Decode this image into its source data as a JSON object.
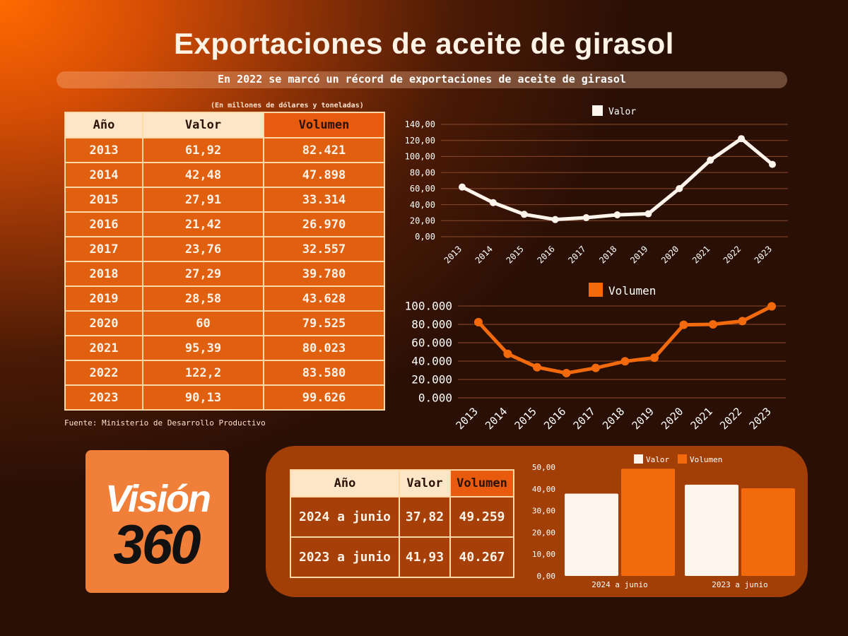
{
  "title": "Exportaciones de aceite de girasol",
  "subtitle": "En 2022 se marcó un récord de exportaciones de aceite de girasol",
  "units_note": "(En millones de dólares y toneladas)",
  "source": "Fuente: Ministerio de Desarrollo Productivo",
  "logo": {
    "top": "Visión",
    "bottom": "360"
  },
  "colors": {
    "valor": "#fff5ec",
    "volumen": "#f26a0c",
    "grid": "#8a4a2a"
  },
  "main_table": {
    "headers": [
      "Año",
      "Valor",
      "Volumen"
    ],
    "rows": [
      [
        "2013",
        "61,92",
        "82.421"
      ],
      [
        "2014",
        "42,48",
        "47.898"
      ],
      [
        "2015",
        "27,91",
        "33.314"
      ],
      [
        "2016",
        "21,42",
        "26.970"
      ],
      [
        "2017",
        "23,76",
        "32.557"
      ],
      [
        "2018",
        "27,29",
        "39.780"
      ],
      [
        "2019",
        "28,58",
        "43.628"
      ],
      [
        "2020",
        "60",
        "79.525"
      ],
      [
        "2021",
        "95,39",
        "80.023"
      ],
      [
        "2022",
        "122,2",
        "83.580"
      ],
      [
        "2023",
        "90,13",
        "99.626"
      ]
    ]
  },
  "mini_table": {
    "headers": [
      "Año",
      "Valor",
      "Volumen"
    ],
    "rows": [
      [
        "2024 a junio",
        "37,82",
        "49.259"
      ],
      [
        "2023 a junio",
        "41,93",
        "40.267"
      ]
    ]
  },
  "chart_data": [
    {
      "type": "line",
      "x": [
        "2013",
        "2014",
        "2015",
        "2016",
        "2017",
        "2018",
        "2019",
        "2020",
        "2021",
        "2022",
        "2023"
      ],
      "series": [
        {
          "name": "Valor",
          "values": [
            61.92,
            42.48,
            27.91,
            21.42,
            23.76,
            27.29,
            28.58,
            60,
            95.39,
            122.2,
            90.13
          ]
        }
      ],
      "ylim": [
        0,
        140
      ],
      "yticks": [
        "140,00",
        "120,00",
        "100,00",
        "80,00",
        "60,00",
        "40,00",
        "20,00",
        "0,00"
      ],
      "legend": "top-center",
      "grid": true
    },
    {
      "type": "line",
      "x": [
        "2013",
        "2014",
        "2015",
        "2016",
        "2017",
        "2018",
        "2019",
        "2020",
        "2021",
        "2022",
        "2023"
      ],
      "series": [
        {
          "name": "Volumen",
          "values": [
            82421,
            47898,
            33314,
            26970,
            32557,
            39780,
            43628,
            79525,
            80023,
            83580,
            99626
          ]
        }
      ],
      "ylim": [
        0,
        100000
      ],
      "yticks": [
        "100.000",
        "80.000",
        "60.000",
        "40.000",
        "20.000",
        "0.000"
      ],
      "legend": "top-center",
      "grid": true
    },
    {
      "type": "bar",
      "categories": [
        "2024 a junio",
        "2023 a junio"
      ],
      "series": [
        {
          "name": "Valor",
          "values": [
            37.82,
            41.93
          ]
        },
        {
          "name": "Volumen",
          "values": [
            49.259,
            40.267
          ]
        }
      ],
      "ylim": [
        0,
        50
      ],
      "yticks": [
        "50,00",
        "40,00",
        "30,00",
        "20,00",
        "10,00",
        "0,00"
      ],
      "legend": "top-center",
      "grid": false
    }
  ]
}
